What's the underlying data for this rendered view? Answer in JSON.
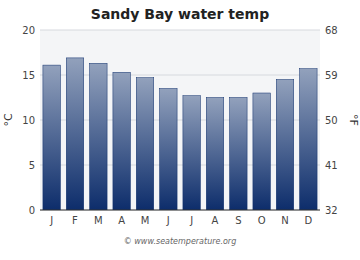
{
  "chart_data": {
    "type": "bar",
    "title": "Sandy Bay water temp",
    "categories": [
      "J",
      "F",
      "M",
      "A",
      "M",
      "J",
      "J",
      "A",
      "S",
      "O",
      "N",
      "D"
    ],
    "values": [
      16.1,
      16.9,
      16.3,
      15.3,
      14.7,
      13.5,
      12.7,
      12.5,
      12.5,
      13.0,
      14.5,
      15.7
    ],
    "color": "#0d2d6b",
    "ylabel": "°C",
    "y2label": "°F",
    "ylim": [
      0,
      20
    ],
    "yticks": [
      0,
      5,
      10,
      15,
      20
    ],
    "y2lim": [
      32,
      68
    ],
    "y2ticks": [
      32,
      41,
      50,
      59,
      68
    ],
    "grid": true,
    "annotations": [
      "© www.seatemperature.org"
    ]
  }
}
